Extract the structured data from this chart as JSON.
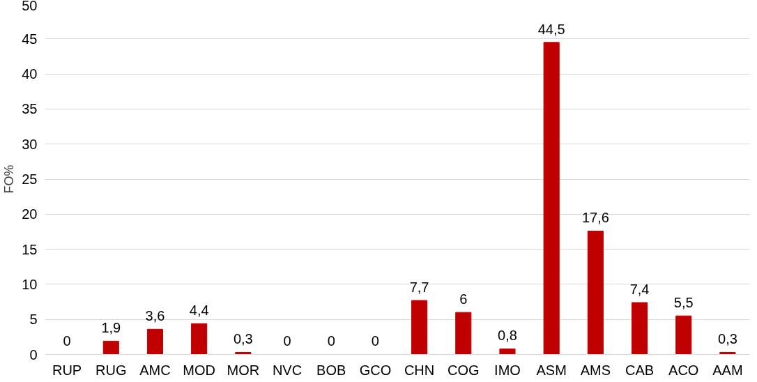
{
  "chart_data": {
    "type": "bar",
    "ylabel": "FO%",
    "categories": [
      "RUP",
      "RUG",
      "AMC",
      "MOD",
      "MOR",
      "NVC",
      "BOB",
      "GCO",
      "CHN",
      "COG",
      "IMO",
      "ASM",
      "AMS",
      "CAB",
      "ACO",
      "AAM"
    ],
    "values": [
      0,
      1.9,
      3.6,
      4.4,
      0.3,
      0,
      0,
      0,
      7.7,
      6,
      0.8,
      44.5,
      17.6,
      7.4,
      5.5,
      0.3
    ],
    "value_labels": [
      "0",
      "1,9",
      "3,6",
      "4,4",
      "0,3",
      "0",
      "0",
      "0",
      "7,7",
      "6",
      "0,8",
      "44,5",
      "17,6",
      "7,4",
      "5,5",
      "0,3"
    ],
    "color": "#c00000",
    "ylim": [
      0,
      50
    ],
    "yticks": [
      0,
      5,
      10,
      15,
      20,
      25,
      30,
      35,
      40,
      45,
      50
    ],
    "grid": "y"
  }
}
